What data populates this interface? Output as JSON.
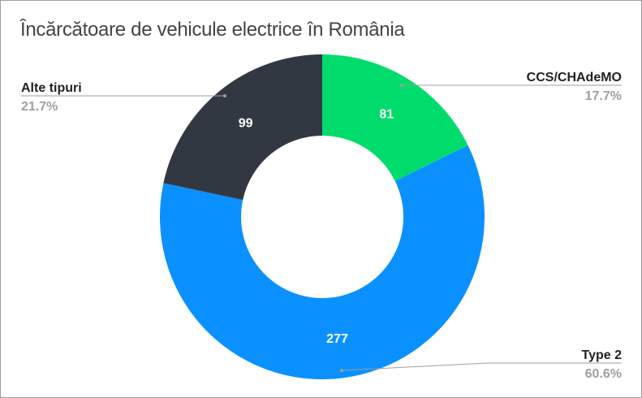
{
  "chart_data": {
    "type": "pie",
    "donut": true,
    "title": "Încărcătoare de vehicule electrice în România",
    "slices": [
      {
        "name": "CCS/CHAdeMO",
        "value": 81,
        "percent": "17.7%",
        "color": "#00dc6b"
      },
      {
        "name": "Type 2",
        "value": 277,
        "percent": "60.6%",
        "color": "#0a91ff"
      },
      {
        "name": "Alte tipuri",
        "value": 99,
        "percent": "21.7%",
        "color": "#323842"
      }
    ],
    "legend": "leader-line labels"
  }
}
